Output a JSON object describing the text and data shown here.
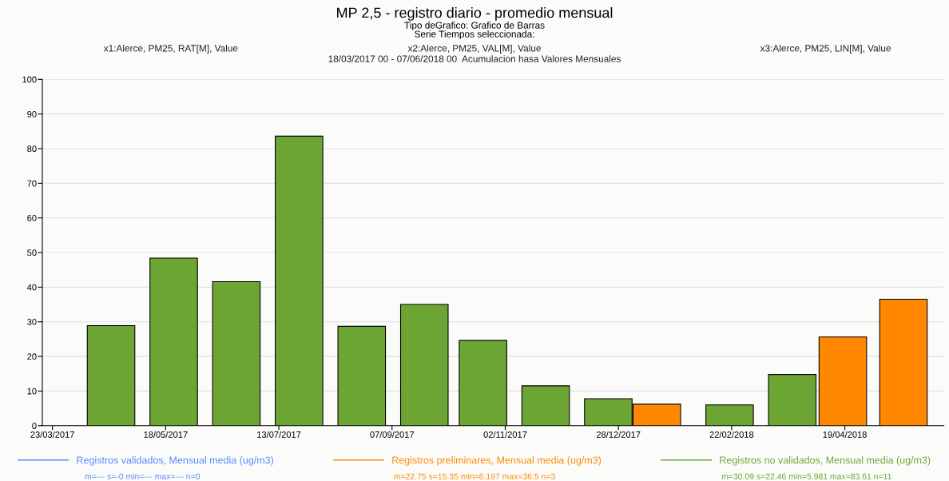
{
  "chart_data": {
    "type": "bar",
    "title": "MP 2,5 - registro diario - promedio mensual",
    "subtitle": "Tipo deGrafico: Grafico de Barras\nSerie Tiempos seleccionada:",
    "annotations": [
      "x1:Alerce, PM25, RAT[M], Value",
      "x2:Alerce, PM25, VAL[M], Value",
      "x3:Alerce, PM25, LIN[M], Value",
      "18/03/2017 00 - 07/06/2018 00  Acumulacion hasa Valores Mensuales",
      "m=--- s=-0 min=--- max=--- n=0",
      "m=22.75 s=15.35 min=6.197 max=36.5 n=3",
      "m=30.09 s=22.46 min=5.981 max=83.61 n=11"
    ],
    "series": [
      {
        "name": "Registros validados, Mensual media (ug/m3)",
        "color": "#5588ff"
      },
      {
        "name": "Registros preliminares, Mensual media (ug/m3)",
        "color": "#ff8800",
        "x": [
          "2018-01-16",
          "2018-04-18",
          "2018-05-18"
        ],
        "values": [
          6.2,
          25.6,
          36.5
        ]
      },
      {
        "name": "Registros no validados, Mensual media (ug/m3)",
        "color": "#6da534",
        "x": [
          "2017-04-21",
          "2017-05-22",
          "2017-06-22",
          "2017-07-23",
          "2017-08-23",
          "2017-09-23",
          "2017-10-22",
          "2017-11-22",
          "2017-12-23",
          "2018-02-21",
          "2018-03-24"
        ],
        "values": [
          28.9,
          48.4,
          41.6,
          83.6,
          28.7,
          35.0,
          24.6,
          11.5,
          7.8,
          6.0,
          14.8
        ]
      }
    ],
    "xlim": [
      "2017-03-18",
      "2018-06-07"
    ],
    "xticks": [
      {
        "value": "2017-03-23",
        "label": "23/03/2017"
      },
      {
        "value": "2017-05-18",
        "label": "18/05/2017"
      },
      {
        "value": "2017-07-13",
        "label": "13/07/2017"
      },
      {
        "value": "2017-09-07",
        "label": "07/09/2017"
      },
      {
        "value": "2017-11-02",
        "label": "02/11/2017"
      },
      {
        "value": "2017-12-28",
        "label": "28/12/2017"
      },
      {
        "value": "2018-02-22",
        "label": "22/02/2018"
      },
      {
        "value": "2018-04-19",
        "label": "19/04/2018"
      }
    ],
    "ylim": [
      0,
      100
    ],
    "yticks": [
      0,
      10,
      20,
      30,
      40,
      50,
      60,
      70,
      80,
      90,
      100
    ],
    "grid": "y",
    "legend": "bottom"
  }
}
